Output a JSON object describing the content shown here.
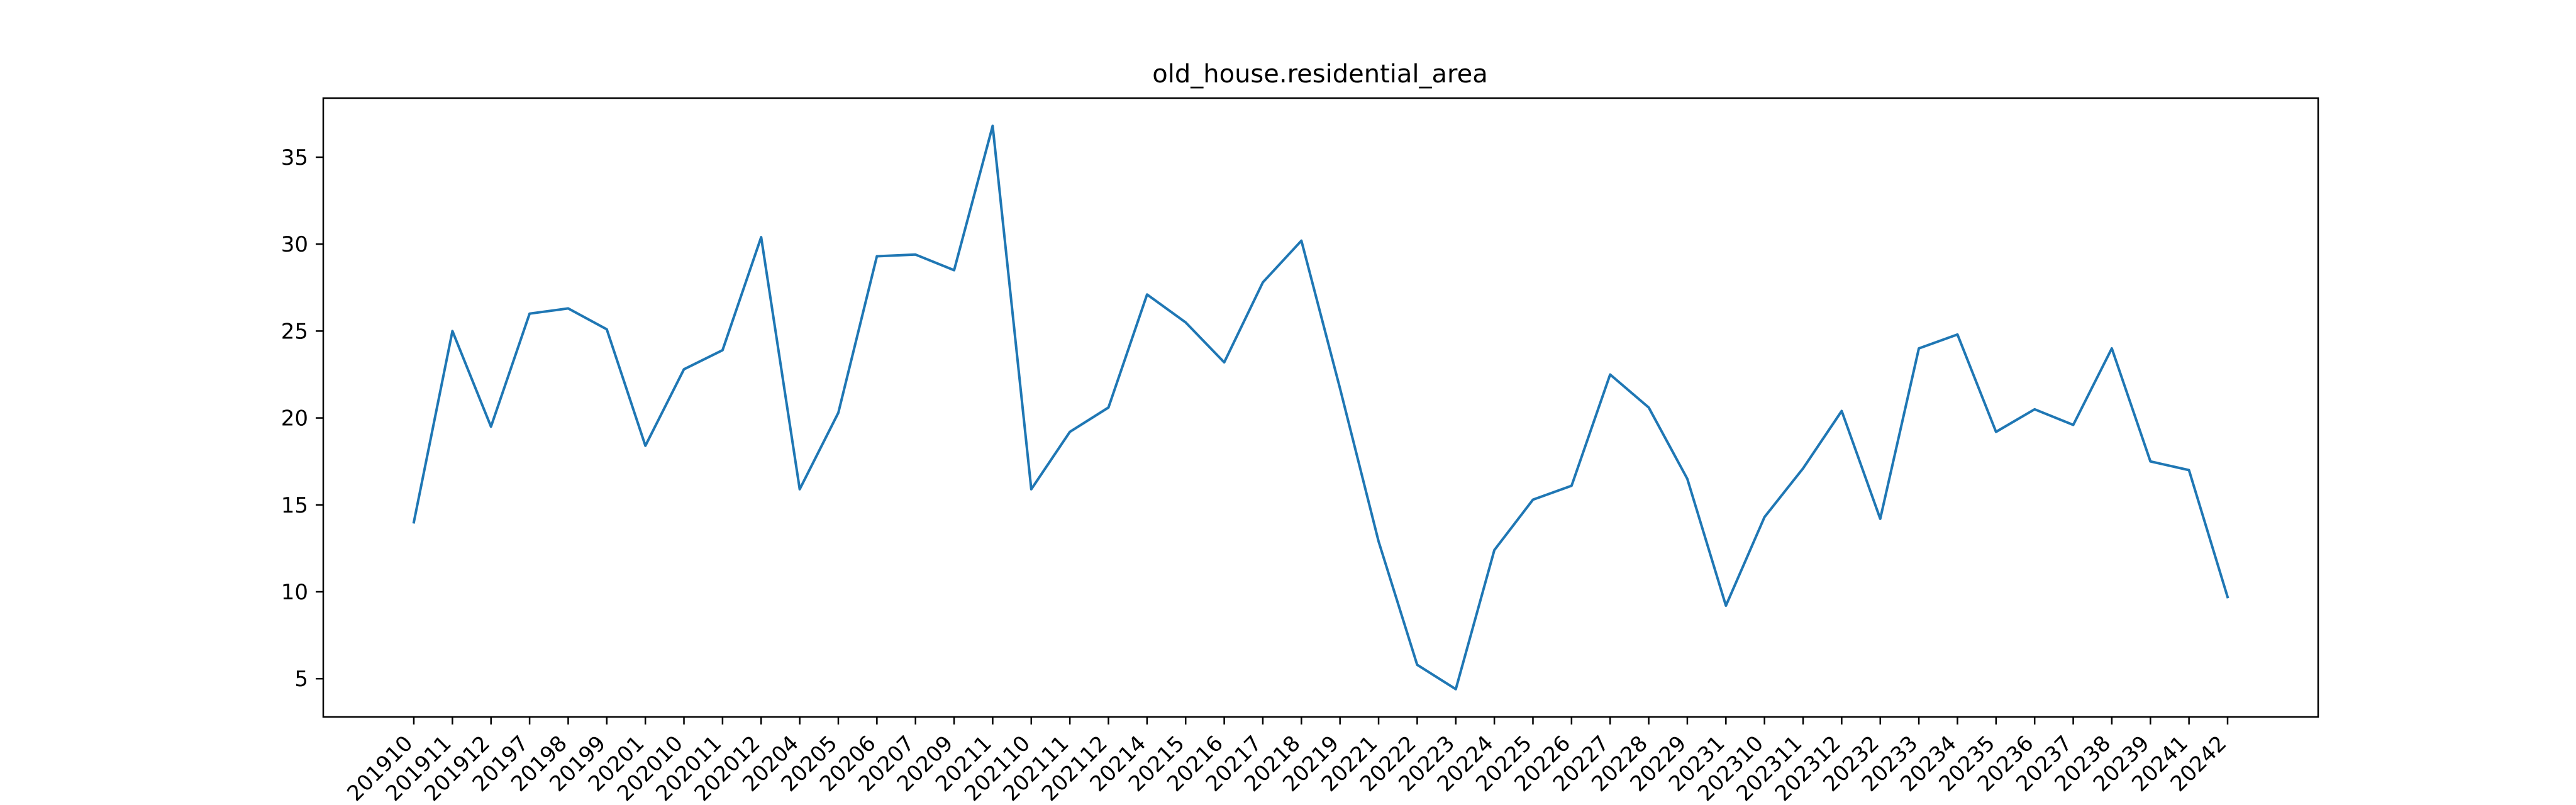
{
  "chart_data": {
    "type": "line",
    "title": "old_house.residential_area",
    "xlabel": "",
    "ylabel": "",
    "categories": [
      "201910",
      "201911",
      "201912",
      "20197",
      "20198",
      "20199",
      "20201",
      "202010",
      "202011",
      "202012",
      "20204",
      "20205",
      "20206",
      "20207",
      "20209",
      "20211",
      "202110",
      "202111",
      "202112",
      "20214",
      "20215",
      "20216",
      "20217",
      "20218",
      "20219",
      "20221",
      "20222",
      "20223",
      "20224",
      "20225",
      "20226",
      "20227",
      "20228",
      "20229",
      "20231",
      "202310",
      "202311",
      "202312",
      "20232",
      "20233",
      "20234",
      "20235",
      "20236",
      "20237",
      "20238",
      "20239",
      "20241",
      "20242"
    ],
    "series": [
      {
        "name": "",
        "color": "#1f77b4",
        "values": [
          14.0,
          25.0,
          19.5,
          26.0,
          26.3,
          25.1,
          18.4,
          22.8,
          23.9,
          30.4,
          15.9,
          20.3,
          29.3,
          29.4,
          28.5,
          36.8,
          15.9,
          19.2,
          20.6,
          27.1,
          25.5,
          23.2,
          27.8,
          30.2,
          21.7,
          12.9,
          5.8,
          4.4,
          12.4,
          15.3,
          16.1,
          22.5,
          20.6,
          16.5,
          9.2,
          14.3,
          17.1,
          20.4,
          14.2,
          24.0,
          24.8,
          19.2,
          20.5,
          19.6,
          24.0,
          17.5,
          17.0,
          9.7
        ]
      }
    ],
    "ylim": [
      2.8,
      38.4
    ],
    "yticks": [
      5,
      10,
      15,
      20,
      25,
      30,
      35
    ],
    "grid": false,
    "legend": "none"
  }
}
